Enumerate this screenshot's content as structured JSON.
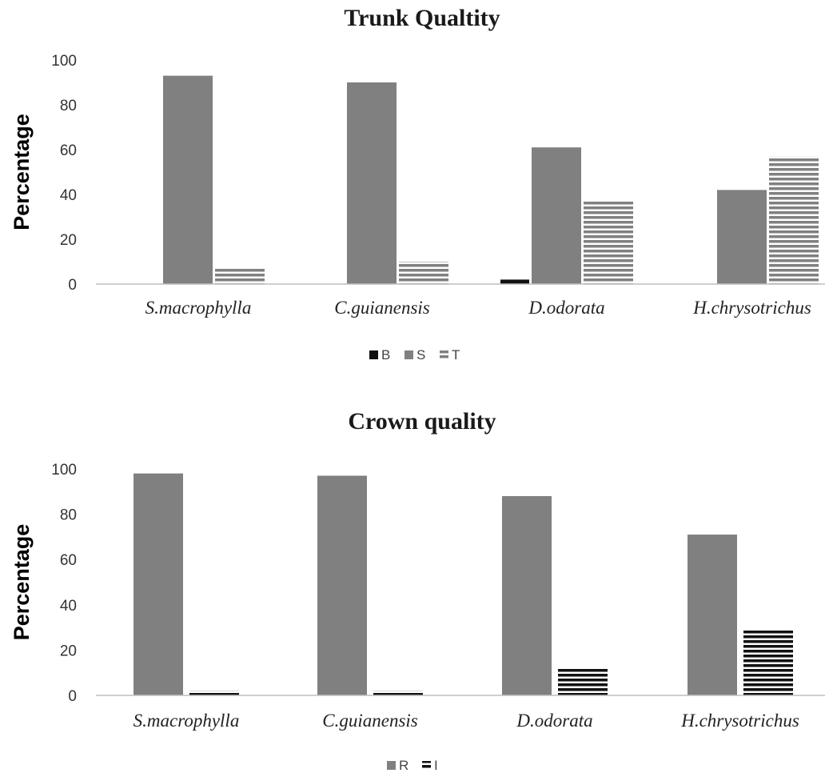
{
  "chart_data": [
    {
      "type": "bar",
      "title": "Trunk Qualtity",
      "ylabel": "Percentage",
      "xlabel": "",
      "ylim": [
        0,
        100
      ],
      "yticks": [
        0,
        20,
        40,
        60,
        80,
        100
      ],
      "categories": [
        "S.macrophylla",
        "C.guianensis",
        "D.odorata",
        "H.chrysotrichus"
      ],
      "series": [
        {
          "name": "B",
          "values": [
            0,
            0,
            2,
            0
          ],
          "color": "#111111",
          "pattern": "solid"
        },
        {
          "name": "S",
          "values": [
            93,
            90,
            61,
            42
          ],
          "color": "#808080",
          "pattern": "solid"
        },
        {
          "name": "T",
          "values": [
            7,
            10,
            37,
            57
          ],
          "color": "#808080",
          "pattern": "horizontal-stripes"
        }
      ],
      "legend_position": "bottom",
      "grid": false
    },
    {
      "type": "bar",
      "title": "Crown quality",
      "ylabel": "Percentage",
      "xlabel": "",
      "ylim": [
        0,
        100
      ],
      "yticks": [
        0,
        20,
        40,
        60,
        80,
        100
      ],
      "categories": [
        "S.macrophylla",
        "C.guianensis",
        "D.odorata",
        "H.chrysotrichus"
      ],
      "series": [
        {
          "name": "R",
          "values": [
            98,
            97,
            88,
            71
          ],
          "color": "#808080",
          "pattern": "solid"
        },
        {
          "name": "I",
          "values": [
            2,
            2,
            12,
            29
          ],
          "color": "#111111",
          "pattern": "horizontal-stripes"
        }
      ],
      "legend_position": "bottom",
      "grid": false
    }
  ]
}
